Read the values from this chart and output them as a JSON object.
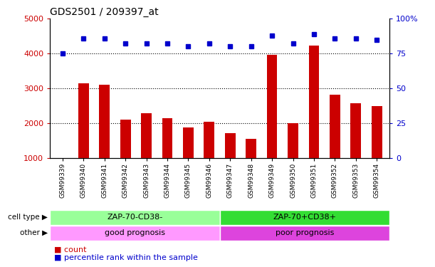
{
  "title": "GDS2501 / 209397_at",
  "samples": [
    "GSM99339",
    "GSM99340",
    "GSM99341",
    "GSM99342",
    "GSM99343",
    "GSM99344",
    "GSM99345",
    "GSM99346",
    "GSM99347",
    "GSM99348",
    "GSM99349",
    "GSM99350",
    "GSM99351",
    "GSM99352",
    "GSM99353",
    "GSM99354"
  ],
  "counts": [
    1000,
    3150,
    3100,
    2100,
    2280,
    2150,
    1880,
    2050,
    1720,
    1560,
    3960,
    2000,
    4220,
    2820,
    2580,
    2500
  ],
  "percentiles": [
    75,
    86,
    86,
    82,
    82,
    82,
    80,
    82,
    80,
    80,
    88,
    82,
    89,
    86,
    86,
    85
  ],
  "bar_color": "#cc0000",
  "dot_color": "#0000cc",
  "ylim_left": [
    1000,
    5000
  ],
  "ylim_right": [
    0,
    100
  ],
  "yticks_left": [
    1000,
    2000,
    3000,
    4000,
    5000
  ],
  "yticks_right": [
    0,
    25,
    50,
    75,
    100
  ],
  "grid_values": [
    2000,
    3000,
    4000
  ],
  "cell_type_labels": [
    "ZAP-70-CD38-",
    "ZAP-70+CD38+"
  ],
  "cell_type_colors": [
    "#99ff99",
    "#33dd33"
  ],
  "other_labels": [
    "good prognosis",
    "poor prognosis"
  ],
  "other_colors": [
    "#ff99ff",
    "#dd44dd"
  ],
  "split_index": 8,
  "legend_count": "count",
  "legend_pct": "percentile rank within the sample",
  "cell_type_row_label": "cell type",
  "other_row_label": "other"
}
